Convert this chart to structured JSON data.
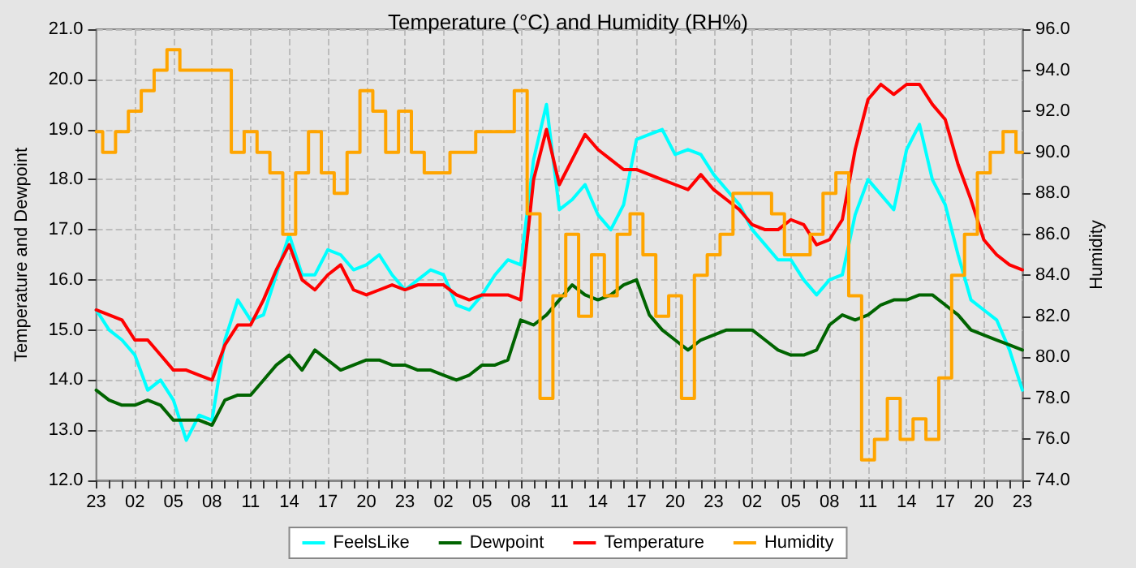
{
  "chart_data": {
    "type": "line",
    "title": "Temperature (°C) and Humidity (RH%)",
    "ylabel": "Temperature and Dewpoint",
    "y2label": "Humidity",
    "categories": [
      "23",
      null,
      null,
      "02",
      null,
      null,
      "05",
      null,
      null,
      "08",
      null,
      null,
      "11",
      null,
      null,
      "14",
      null,
      null,
      "17",
      null,
      null,
      "20",
      null,
      null,
      "23",
      null,
      null,
      "02",
      null,
      null,
      "05",
      null,
      null,
      "08",
      null,
      null,
      "11",
      null,
      null,
      "14",
      null,
      null,
      "17",
      null,
      null,
      "20",
      null,
      null,
      "23",
      null,
      null,
      "02",
      null,
      null,
      "05",
      null,
      null,
      "08",
      null,
      null,
      "11",
      null,
      null,
      "14",
      null,
      null,
      "17",
      null,
      null,
      "20",
      null,
      null,
      "23"
    ],
    "ylim": [
      12,
      21
    ],
    "yticks": [
      {
        "value": 12,
        "label": "12.0"
      },
      {
        "value": 13,
        "label": "13.0"
      },
      {
        "value": 14,
        "label": "14.0"
      },
      {
        "value": 15,
        "label": "15.0"
      },
      {
        "value": 16,
        "label": "16.0"
      },
      {
        "value": 17,
        "label": "17.0"
      },
      {
        "value": 18,
        "label": "18.0"
      },
      {
        "value": 19,
        "label": "19.0"
      },
      {
        "value": 20,
        "label": "20.0"
      },
      {
        "value": 21,
        "label": "21.0"
      }
    ],
    "y2lim": [
      74,
      96
    ],
    "y2ticks": [
      {
        "value": 74,
        "label": "74.0"
      },
      {
        "value": 76,
        "label": "76.0"
      },
      {
        "value": 78,
        "label": "78.0"
      },
      {
        "value": 80,
        "label": "80.0"
      },
      {
        "value": 82,
        "label": "82.0"
      },
      {
        "value": 84,
        "label": "84.0"
      },
      {
        "value": 86,
        "label": "86.0"
      },
      {
        "value": 88,
        "label": "88.0"
      },
      {
        "value": 90,
        "label": "90.0"
      },
      {
        "value": 92,
        "label": "92.0"
      },
      {
        "value": 94,
        "label": "94.0"
      },
      {
        "value": 96,
        "label": "96.0"
      }
    ],
    "grid": true,
    "legend": "bottom",
    "marker": "none",
    "line_style": "solid",
    "series": [
      {
        "name": "FeelsLike",
        "color": "#00ffff",
        "values": [
          15.4,
          15.0,
          14.8,
          14.5,
          13.8,
          14.0,
          13.6,
          12.8,
          13.3,
          13.2,
          14.8,
          15.6,
          15.2,
          15.3,
          16.1,
          16.9,
          16.1,
          16.1,
          16.6,
          16.5,
          16.2,
          16.3,
          16.5,
          16.1,
          15.8,
          16.0,
          16.2,
          16.1,
          15.5,
          15.4,
          15.7,
          16.1,
          16.4,
          16.3,
          18.4,
          19.5,
          17.4,
          17.6,
          17.9,
          17.3,
          17.0,
          17.5,
          18.8,
          18.9,
          19.0,
          18.5,
          18.6,
          18.5,
          18.1,
          17.8,
          17.5,
          17.0,
          16.7,
          16.4,
          16.4,
          16.0,
          15.7,
          16.0,
          16.1,
          17.3,
          18.0,
          17.7,
          17.4,
          18.6,
          19.1,
          18.0,
          17.5,
          16.5,
          15.6,
          15.4,
          15.2,
          14.6,
          13.8
        ]
      },
      {
        "name": "Dewpoint",
        "color": "#006400",
        "values": [
          13.8,
          13.6,
          13.5,
          13.5,
          13.6,
          13.5,
          13.2,
          13.2,
          13.2,
          13.1,
          13.6,
          13.7,
          13.7,
          14.0,
          14.3,
          14.5,
          14.2,
          14.6,
          14.4,
          14.2,
          14.3,
          14.4,
          14.4,
          14.3,
          14.3,
          14.2,
          14.2,
          14.1,
          14.0,
          14.1,
          14.3,
          14.3,
          14.4,
          15.2,
          15.1,
          15.3,
          15.6,
          15.9,
          15.7,
          15.6,
          15.7,
          15.9,
          16.0,
          15.3,
          15.0,
          14.8,
          14.6,
          14.8,
          14.9,
          15.0,
          15.0,
          15.0,
          14.8,
          14.6,
          14.5,
          14.5,
          14.6,
          15.1,
          15.3,
          15.2,
          15.3,
          15.5,
          15.6,
          15.6,
          15.7,
          15.7,
          15.5,
          15.3,
          15.0,
          14.9,
          14.8,
          14.7,
          14.6
        ]
      },
      {
        "name": "Temperature",
        "color": "#ff0000",
        "values": [
          15.4,
          15.3,
          15.2,
          14.8,
          14.8,
          14.5,
          14.2,
          14.2,
          14.1,
          14.0,
          14.7,
          15.1,
          15.1,
          15.6,
          16.2,
          16.7,
          16.0,
          15.8,
          16.1,
          16.3,
          15.8,
          15.7,
          15.8,
          15.9,
          15.8,
          15.9,
          15.9,
          15.9,
          15.7,
          15.6,
          15.7,
          15.7,
          15.7,
          15.6,
          18.0,
          19.0,
          17.9,
          18.4,
          18.9,
          18.6,
          18.4,
          18.2,
          18.2,
          18.1,
          18.0,
          17.9,
          17.8,
          18.1,
          17.8,
          17.6,
          17.4,
          17.1,
          17.0,
          17.0,
          17.2,
          17.1,
          16.7,
          16.8,
          17.2,
          18.6,
          19.6,
          19.9,
          19.7,
          19.9,
          19.9,
          19.5,
          19.2,
          18.3,
          17.6,
          16.8,
          16.5,
          16.3,
          16.2
        ]
      },
      {
        "name": "Humidity",
        "color": "#ffa500",
        "type": "step",
        "axis": "y2",
        "values": [
          91,
          90,
          91,
          92,
          93,
          94,
          95,
          94,
          94,
          94,
          94,
          90,
          91,
          90,
          89,
          86,
          89,
          91,
          89,
          88,
          90,
          93,
          92,
          90,
          92,
          90,
          89,
          89,
          90,
          90,
          91,
          91,
          91,
          93,
          87,
          78,
          83,
          86,
          82,
          85,
          83,
          86,
          87,
          85,
          82,
          83,
          78,
          84,
          85,
          86,
          88,
          88,
          88,
          87,
          85,
          85,
          86,
          88,
          89,
          83,
          75,
          76,
          78,
          76,
          77,
          76,
          79,
          84,
          86,
          89,
          90,
          91,
          90
        ]
      }
    ]
  }
}
